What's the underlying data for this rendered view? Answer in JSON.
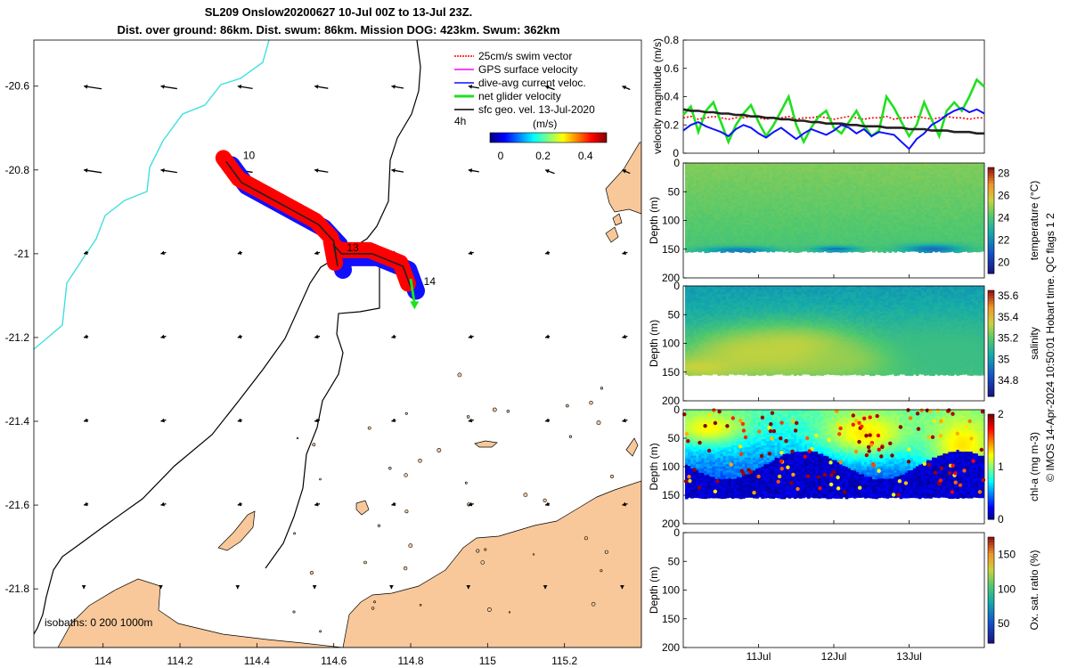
{
  "title_line1": "SL209 Onslow20200627 10-Jul 00Z to 13-Jul 23Z.",
  "title_line2": "Dist. over ground: 86km. Dist. swum: 86km. Mission DOG: 423km. Swum: 362km",
  "credit": "© IMOS 14-Apr-2024 10:50:01 Hobart time. QC flags 1  2",
  "colors": {
    "land": "#f8c89a",
    "coast300": "#40e0e0",
    "glider_red": "#ff0000",
    "glider_blue": "#1010ff",
    "glider_green": "#20e020",
    "line_black": "#222222"
  },
  "chart_data": [
    {
      "type": "scatter",
      "name": "map",
      "xlim": [
        113.82,
        115.4
      ],
      "ylim": [
        -21.94,
        -20.49
      ],
      "xticks": [
        "114",
        "114.2",
        "114.4",
        "114.6",
        "114.8",
        "115",
        "115.2"
      ],
      "yticks": [
        "-20.6",
        "-20.8",
        "-21",
        "-21.2",
        "-21.4",
        "-21.6",
        "-21.8"
      ],
      "legend": [
        "25cm/s swim vector",
        "GPS surface velocity",
        "dive-avg current veloc.",
        "net glider velocity",
        "sfc geo. vel. 13-Jul-2020"
      ],
      "legend_location": "top-right",
      "colorbar": {
        "label": "(m/s)",
        "ticks": [
          "0",
          "0.2",
          "0.4"
        ],
        "range": [
          -0.05,
          0.5
        ]
      },
      "time_interval_label": "4h",
      "day_labels": [
        {
          "label": "10",
          "lon": 114.35,
          "lat": -20.77
        },
        {
          "label": "13",
          "lon": 114.62,
          "lat": -20.99
        },
        {
          "label": "14",
          "lon": 114.82,
          "lat": -21.07
        }
      ],
      "isobaths_label": "isobaths: 0   200  1000m",
      "glider_track": {
        "lon": [
          114.32,
          114.36,
          114.42,
          114.5,
          114.56,
          114.6,
          114.61,
          114.6,
          114.62,
          114.7,
          114.78,
          114.8
        ],
        "lat": [
          -20.78,
          -20.83,
          -20.86,
          -20.9,
          -20.93,
          -20.97,
          -21.03,
          -20.98,
          -21.0,
          -21.0,
          -21.03,
          -21.08
        ]
      },
      "net_velocity_arrow": {
        "lon": [
          114.8,
          114.81
        ],
        "lat": [
          -21.06,
          -21.12
        ]
      }
    },
    {
      "type": "line",
      "name": "velocity",
      "ylabel": "velocity magnitude (m/s)",
      "ylim": [
        0,
        0.8
      ],
      "yticks": [
        "0",
        "0.2",
        "0.4",
        "0.6",
        "0.8"
      ],
      "x": [
        0,
        0.1,
        0.2,
        0.3,
        0.4,
        0.5,
        0.6,
        0.7,
        0.8,
        0.9,
        1.0,
        1.1,
        1.2,
        1.3,
        1.4,
        1.5,
        1.6,
        1.7,
        1.8,
        1.9,
        2.0,
        2.1,
        2.2,
        2.3,
        2.4,
        2.5,
        2.6,
        2.7,
        2.8,
        2.9,
        3.0,
        3.1,
        3.2,
        3.3,
        3.4,
        3.5,
        3.6,
        3.7,
        3.8,
        3.9,
        4.0
      ],
      "series": [
        {
          "name": "swim vector",
          "values": [
            0.25,
            0.26,
            0.24,
            0.25,
            0.26,
            0.25,
            0.24,
            0.25,
            0.25,
            0.26,
            0.25,
            0.24,
            0.25,
            0.25,
            0.26,
            0.24,
            0.25,
            0.25,
            0.26,
            0.25,
            0.24,
            0.25,
            0.26,
            0.25,
            0.24,
            0.25,
            0.25,
            0.26,
            0.24,
            0.25,
            0.25,
            0.26,
            0.25,
            0.24,
            0.25,
            0.26,
            0.25,
            0.25,
            0.24,
            0.25,
            0.25
          ]
        },
        {
          "name": "net glider velocity",
          "values": [
            0.27,
            0.33,
            0.15,
            0.3,
            0.36,
            0.22,
            0.08,
            0.2,
            0.28,
            0.34,
            0.22,
            0.12,
            0.2,
            0.3,
            0.4,
            0.2,
            0.08,
            0.18,
            0.26,
            0.3,
            0.18,
            0.14,
            0.22,
            0.3,
            0.2,
            0.12,
            0.16,
            0.4,
            0.32,
            0.22,
            0.12,
            0.2,
            0.36,
            0.24,
            0.12,
            0.3,
            0.36,
            0.3,
            0.4,
            0.52,
            0.47
          ]
        },
        {
          "name": "dive-avg current",
          "values": [
            0.16,
            0.2,
            0.22,
            0.19,
            0.17,
            0.15,
            0.12,
            0.17,
            0.2,
            0.18,
            0.14,
            0.11,
            0.15,
            0.18,
            0.14,
            0.1,
            0.14,
            0.17,
            0.15,
            0.13,
            0.16,
            0.2,
            0.18,
            0.14,
            0.17,
            0.12,
            0.15,
            0.14,
            0.13,
            0.08,
            0.03,
            0.1,
            0.14,
            0.2,
            0.23,
            0.27,
            0.3,
            0.32,
            0.29,
            0.31,
            0.28
          ]
        },
        {
          "name": "sfc geo. vel.",
          "values": [
            0.31,
            0.3,
            0.3,
            0.29,
            0.29,
            0.28,
            0.28,
            0.27,
            0.27,
            0.26,
            0.26,
            0.25,
            0.25,
            0.24,
            0.24,
            0.23,
            0.23,
            0.22,
            0.22,
            0.21,
            0.21,
            0.21,
            0.2,
            0.2,
            0.19,
            0.19,
            0.19,
            0.18,
            0.18,
            0.18,
            0.17,
            0.17,
            0.17,
            0.16,
            0.16,
            0.16,
            0.15,
            0.15,
            0.15,
            0.14,
            0.14
          ]
        }
      ]
    },
    {
      "type": "heatmap",
      "name": "temperature",
      "ylabel": "Depth (m)",
      "colorbar_label": "temperature (°C)",
      "yticks": [
        "0",
        "50",
        "100",
        "150",
        "200"
      ],
      "colorbar_ticks": [
        "20",
        "22",
        "24",
        "26",
        "28"
      ],
      "colorbar_range": [
        19,
        28.5
      ],
      "depth_range": [
        0,
        200
      ],
      "bottom_depth": 155,
      "field": {
        "base": 24.8,
        "depth_gradient": -0.005,
        "variation": 0.25
      },
      "patches": [
        {
          "time": 0.7,
          "depth": 150,
          "value": 21.8,
          "width": 0.5,
          "height": 6
        },
        {
          "time": 3.3,
          "depth": 148,
          "value": 21.5,
          "width": 0.4,
          "height": 8
        },
        {
          "time": 2.0,
          "depth": 148,
          "value": 21.6,
          "width": 0.3,
          "height": 5
        }
      ]
    },
    {
      "type": "heatmap",
      "name": "salinity",
      "ylabel": "Depth (m)",
      "colorbar_label": "salinity",
      "yticks": [
        "0",
        "50",
        "100",
        "150",
        "200"
      ],
      "colorbar_ticks": [
        "34.8",
        "35",
        "35.2",
        "35.4",
        "35.6"
      ],
      "colorbar_range": [
        34.65,
        35.65
      ],
      "depth_range": [
        0,
        200
      ],
      "bottom_depth": 155,
      "field": {
        "base": 35.02,
        "depth_gradient": 0.0009,
        "variation": 0.05
      },
      "patches": [
        {
          "time": 0.8,
          "depth": 115,
          "value": 35.32,
          "width": 0.9,
          "height": 40
        },
        {
          "time": 1.5,
          "depth": 110,
          "value": 35.35,
          "width": 0.9,
          "height": 45
        },
        {
          "time": 2.2,
          "depth": 125,
          "value": 35.3,
          "width": 0.7,
          "height": 30
        },
        {
          "time": 0.2,
          "depth": 140,
          "value": 35.35,
          "width": 0.6,
          "height": 20
        },
        {
          "time": 3.5,
          "depth": 110,
          "value": 35.15,
          "width": 0.9,
          "height": 50
        }
      ]
    },
    {
      "type": "heatmap",
      "name": "chlorophyll",
      "ylabel": "Depth (m)",
      "colorbar_label": "chl-a (mg m-3)",
      "yticks": [
        "0",
        "50",
        "100",
        "150",
        "200"
      ],
      "colorbar_ticks": [
        "0",
        "1",
        "2"
      ],
      "colorbar_range": [
        0,
        2
      ],
      "depth_range": [
        0,
        200
      ],
      "bottom_depth": 155,
      "field": {
        "base": 0.9,
        "depth_gradient": -0.004,
        "variation": 0.15
      },
      "patches": [
        {
          "time": 2.4,
          "depth": 40,
          "value": 1.3,
          "width": 0.6,
          "height": 40
        },
        {
          "time": 0.3,
          "depth": 30,
          "value": 1.25,
          "width": 0.5,
          "height": 30
        },
        {
          "time": 3.7,
          "depth": 60,
          "value": 1.3,
          "width": 0.5,
          "height": 60
        }
      ]
    },
    {
      "type": "heatmap",
      "name": "oxygen",
      "ylabel": "Depth (m)",
      "colorbar_label": "Ox. sat. ratio (%)",
      "yticks": [
        "0",
        "50",
        "100",
        "150",
        "200"
      ],
      "colorbar_ticks": [
        "50",
        "100",
        "150"
      ],
      "colorbar_range": [
        22,
        175
      ],
      "depth_range": [
        0,
        200
      ],
      "empty": true
    },
    {
      "type": "table",
      "name": "shared_time_axis",
      "xlim_days": [
        0,
        4
      ],
      "xtick_labels": [
        "11Jul",
        "12Jul",
        "13Jul"
      ],
      "xtick_days": [
        1,
        2,
        3
      ]
    }
  ]
}
